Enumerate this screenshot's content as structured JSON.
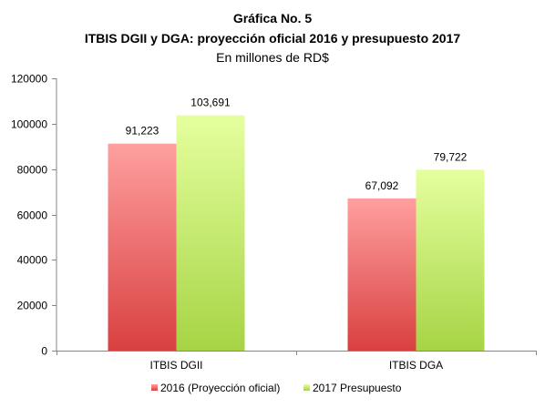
{
  "chart_data": {
    "type": "bar",
    "title_line1": "Gráfica No. 5",
    "title_line2": "ITBIS DGII y DGA: proyección oficial 2016 y presupuesto 2017",
    "subtitle": "En millones de RD$",
    "categories": [
      "ITBIS DGII",
      "ITBIS DGA"
    ],
    "series": [
      {
        "name": "2016 (Proyección oficial)",
        "values": [
          91223,
          67092
        ],
        "labels": [
          "91,223",
          "67,092"
        ],
        "color_top": "#ff9f9f",
        "color_bottom": "#d94040"
      },
      {
        "name": "2017 Presupuesto",
        "values": [
          103691,
          79722
        ],
        "labels": [
          "103,691",
          "79,722"
        ],
        "color_top": "#e5ff9e",
        "color_bottom": "#a6d445"
      }
    ],
    "ylim": [
      0,
      120000
    ],
    "yticks": [
      "0",
      "20000",
      "40000",
      "60000",
      "80000",
      "100000",
      "120000"
    ],
    "ytick_values": [
      0,
      20000,
      40000,
      60000,
      80000,
      100000,
      120000
    ],
    "grid": false,
    "legend_position": "bottom"
  }
}
